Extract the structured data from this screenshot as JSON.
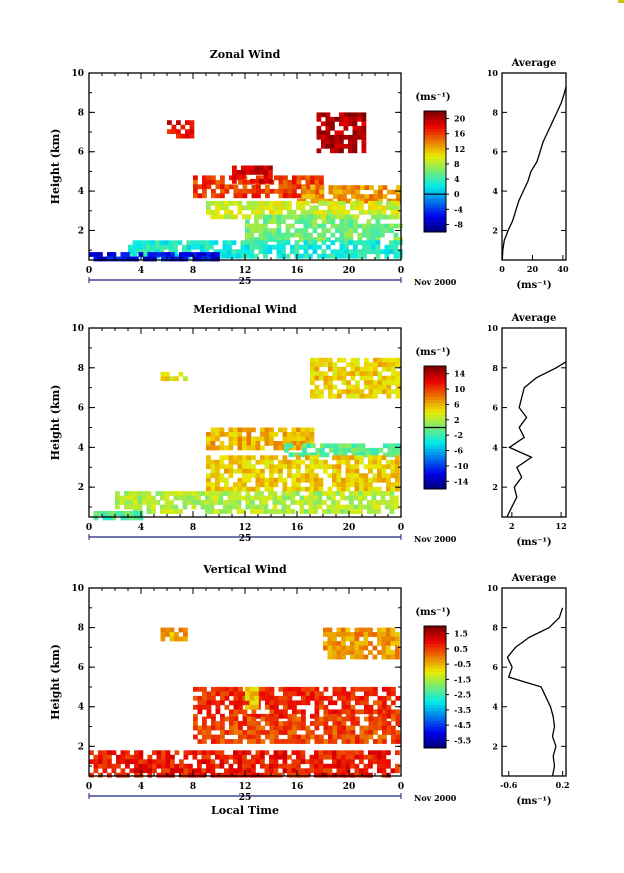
{
  "chart_data": [
    {
      "type": "heatmap",
      "title": "Zonal Wind",
      "ylabel": "Height (km)",
      "ylim": [
        0.5,
        10
      ],
      "yticks": [
        "2",
        "4",
        "6",
        "8",
        "10"
      ],
      "xticks": [
        "0",
        "4",
        "8",
        "12",
        "16",
        "20",
        "0"
      ],
      "date_label": "25",
      "date_suffix": "Nov 2000",
      "colorbar": {
        "unit": "(ms⁻¹)",
        "ticks": [
          "20",
          "16",
          "12",
          "8",
          "4",
          "0",
          "-4",
          "-8"
        ],
        "min": -10,
        "max": 22,
        "zero_line": 0
      },
      "average": {
        "title": "Average",
        "xticks": [
          "0",
          "20",
          "40"
        ],
        "xlim": [
          0,
          42
        ],
        "unit": "(ms⁻¹)",
        "profile": [
          [
            0.5,
            0.2
          ],
          [
            1,
            0.5
          ],
          [
            1.5,
            1.5
          ],
          [
            2,
            4
          ],
          [
            2.5,
            7
          ],
          [
            3,
            9
          ],
          [
            3.5,
            11
          ],
          [
            4,
            14
          ],
          [
            4.5,
            17
          ],
          [
            5,
            19
          ],
          [
            5.5,
            23
          ],
          [
            6,
            25
          ],
          [
            6.5,
            27
          ],
          [
            7,
            30
          ],
          [
            7.5,
            33
          ],
          [
            8,
            36
          ],
          [
            8.5,
            39
          ],
          [
            9,
            41
          ],
          [
            9.3,
            42
          ]
        ]
      },
      "regions": [
        {
          "x": [
            6,
            8
          ],
          "y": [
            6.8,
            7.6
          ],
          "v": 18
        },
        {
          "x": [
            17.5,
            21
          ],
          "y": [
            6,
            8
          ],
          "v": 20
        },
        {
          "x": [
            8,
            18
          ],
          "y": [
            3.8,
            4.8
          ],
          "v": 16
        },
        {
          "x": [
            11,
            14
          ],
          "y": [
            4.5,
            5.3
          ],
          "v": 19
        },
        {
          "x": [
            16,
            23.8
          ],
          "y": [
            3.5,
            4.3
          ],
          "v": 13
        },
        {
          "x": [
            9,
            23.8
          ],
          "y": [
            2.8,
            3.5
          ],
          "v": 9
        },
        {
          "x": [
            12,
            23.8
          ],
          "y": [
            1.5,
            2.8
          ],
          "v": 6
        },
        {
          "x": [
            3,
            23.8
          ],
          "y": [
            0.8,
            1.5
          ],
          "v": 3
        },
        {
          "x": [
            0,
            10
          ],
          "y": [
            0.5,
            0.9
          ],
          "v": -6
        }
      ]
    },
    {
      "type": "heatmap",
      "title": "Meridional Wind",
      "ylabel": "Height (km)",
      "ylim": [
        0.5,
        10
      ],
      "yticks": [
        "2",
        "4",
        "6",
        "8",
        "10"
      ],
      "xticks": [
        "0",
        "4",
        "8",
        "12",
        "16",
        "20",
        "0"
      ],
      "date_label": "25",
      "date_suffix": "Nov 2000",
      "colorbar": {
        "unit": "(ms⁻¹)",
        "ticks": [
          "14",
          "10",
          "6",
          "2",
          "-2",
          "-6",
          "-10",
          "-14"
        ],
        "min": -16,
        "max": 16,
        "zero_line": 0
      },
      "average": {
        "title": "Average",
        "xticks": [
          "2",
          "12"
        ],
        "xlim": [
          0,
          13
        ],
        "unit": "(ms⁻¹)",
        "profile": [
          [
            0.5,
            1
          ],
          [
            1,
            2
          ],
          [
            1.5,
            3
          ],
          [
            2,
            2.5
          ],
          [
            2.5,
            4
          ],
          [
            3,
            3
          ],
          [
            3.5,
            6
          ],
          [
            4,
            1.5
          ],
          [
            4.5,
            4.5
          ],
          [
            5,
            3.5
          ],
          [
            5.5,
            5
          ],
          [
            6,
            3.5
          ],
          [
            6.5,
            4
          ],
          [
            7,
            4.5
          ],
          [
            7.5,
            7
          ],
          [
            8,
            11
          ],
          [
            8.3,
            13
          ]
        ]
      },
      "regions": [
        {
          "x": [
            17,
            23.8
          ],
          "y": [
            6.5,
            8.5
          ],
          "v": 5
        },
        {
          "x": [
            5.5,
            7.5
          ],
          "y": [
            7.5,
            7.8
          ],
          "v": 4
        },
        {
          "x": [
            9,
            17
          ],
          "y": [
            4,
            5
          ],
          "v": 6
        },
        {
          "x": [
            15,
            23.8
          ],
          "y": [
            3.6,
            4.2
          ],
          "v": -1
        },
        {
          "x": [
            9,
            23.8
          ],
          "y": [
            2,
            3.6
          ],
          "v": 5
        },
        {
          "x": [
            2,
            23.8
          ],
          "y": [
            0.8,
            1.8
          ],
          "v": 2
        },
        {
          "x": [
            0,
            4
          ],
          "y": [
            0.5,
            0.8
          ],
          "v": -1
        }
      ]
    },
    {
      "type": "heatmap",
      "title": "Vertical Wind",
      "ylabel": "Height (km)",
      "ylim": [
        0.5,
        10
      ],
      "yticks": [
        "2",
        "4",
        "6",
        "8",
        "10"
      ],
      "xticks": [
        "0",
        "4",
        "8",
        "12",
        "16",
        "20",
        "0"
      ],
      "xlabel": "Local Time",
      "date_label": "25",
      "date_suffix": "Nov 2000",
      "colorbar": {
        "unit": "(ms⁻¹)",
        "ticks": [
          "1.5",
          "0.5",
          "-0.5",
          "-1.5",
          "-2.5",
          "-3.5",
          "-4.5",
          "-5.5"
        ],
        "min": -6,
        "max": 2,
        "zero_line": null
      },
      "average": {
        "title": "Average",
        "xticks": [
          "-0.6",
          "0.2"
        ],
        "xlim": [
          -0.7,
          0.25
        ],
        "unit": "(ms⁻¹)",
        "profile": [
          [
            0.5,
            0.05
          ],
          [
            1,
            0.08
          ],
          [
            1.5,
            0.06
          ],
          [
            2,
            0.1
          ],
          [
            2.5,
            0.05
          ],
          [
            3,
            0.08
          ],
          [
            3.5,
            0.06
          ],
          [
            4,
            0.02
          ],
          [
            4.5,
            -0.05
          ],
          [
            5,
            -0.12
          ],
          [
            5.5,
            -0.6
          ],
          [
            6,
            -0.55
          ],
          [
            6.5,
            -0.62
          ],
          [
            7,
            -0.5
          ],
          [
            7.5,
            -0.3
          ],
          [
            8,
            0
          ],
          [
            8.5,
            0.15
          ],
          [
            9,
            0.2
          ]
        ]
      },
      "regions": [
        {
          "x": [
            18,
            23.8
          ],
          "y": [
            6.5,
            8
          ],
          "v": -0.3
        },
        {
          "x": [
            5.5,
            7.5
          ],
          "y": [
            7.5,
            8
          ],
          "v": -0.4
        },
        {
          "x": [
            8,
            23.8
          ],
          "y": [
            3.5,
            5
          ],
          "v": 0.6
        },
        {
          "x": [
            12,
            13
          ],
          "y": [
            4,
            5
          ],
          "v": -0.8
        },
        {
          "x": [
            8,
            23.8
          ],
          "y": [
            2.3,
            3.5
          ],
          "v": 0.4
        },
        {
          "x": [
            0,
            23.8
          ],
          "y": [
            0.5,
            1.8
          ],
          "v": 0.8
        }
      ]
    }
  ]
}
